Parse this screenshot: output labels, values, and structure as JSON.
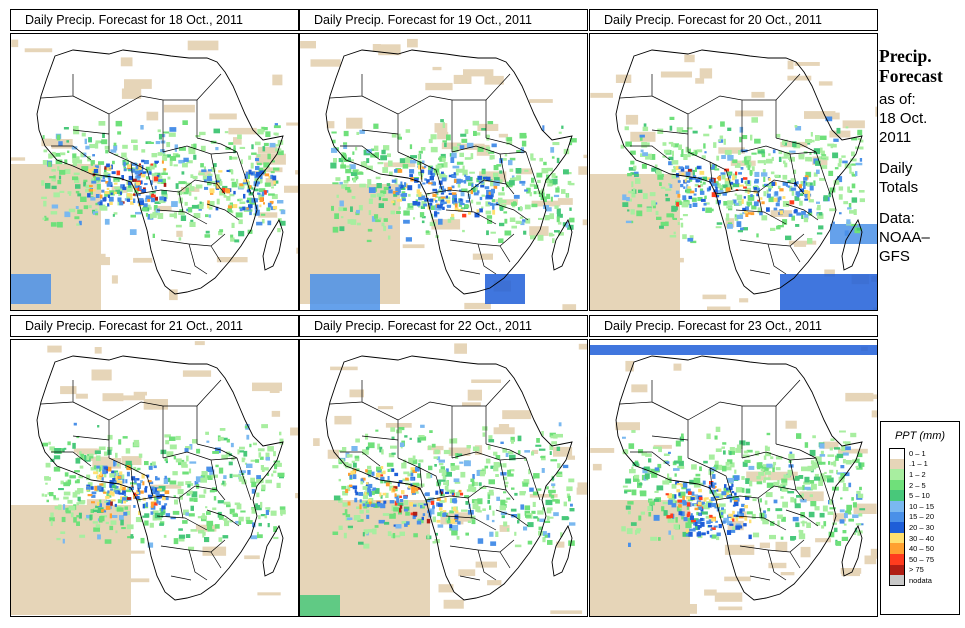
{
  "panels": [
    {
      "title": "Daily Precip. Forecast for  18 Oct., 2011"
    },
    {
      "title": "Daily Precip. Forecast for  19 Oct., 2011"
    },
    {
      "title": "Daily Precip. Forecast for  20 Oct., 2011"
    },
    {
      "title": "Daily Precip. Forecast for  21 Oct., 2011"
    },
    {
      "title": "Daily Precip. Forecast for  22 Oct., 2011"
    },
    {
      "title": "Daily Precip. Forecast for  23 Oct., 2011"
    }
  ],
  "side": {
    "heading_1": "Precip.",
    "heading_2": "Forecast",
    "as_of": "as of:",
    "date_1": "18 Oct.",
    "date_2": "2011",
    "totals_1": "Daily",
    "totals_2": "Totals",
    "data_1": "Data:",
    "data_2": "NOAA–",
    "data_3": "GFS"
  },
  "legend": {
    "title": "PPT (mm)",
    "items": [
      {
        "label": "0 – 1",
        "color": "#ffffff"
      },
      {
        "label": ".1 – 1",
        "color": "#e6d5b8"
      },
      {
        "label": "1 – 2",
        "color": "#a8eea0"
      },
      {
        "label": "2 – 5",
        "color": "#6fe07a"
      },
      {
        "label": "5 – 10",
        "color": "#48c87a"
      },
      {
        "label": "10 – 15",
        "color": "#7ab8f0"
      },
      {
        "label": "15 – 20",
        "color": "#4a90e8"
      },
      {
        "label": "20 – 30",
        "color": "#1e5ed8"
      },
      {
        "label": "30 – 40",
        "color": "#ffe070"
      },
      {
        "label": "40 – 50",
        "color": "#ffa030"
      },
      {
        "label": "50 – 75",
        "color": "#ff3c1e"
      },
      {
        "label": "> 75",
        "color": "#b01e14"
      },
      {
        "label": "nodata",
        "color": "#c8c8c8"
      }
    ]
  }
}
